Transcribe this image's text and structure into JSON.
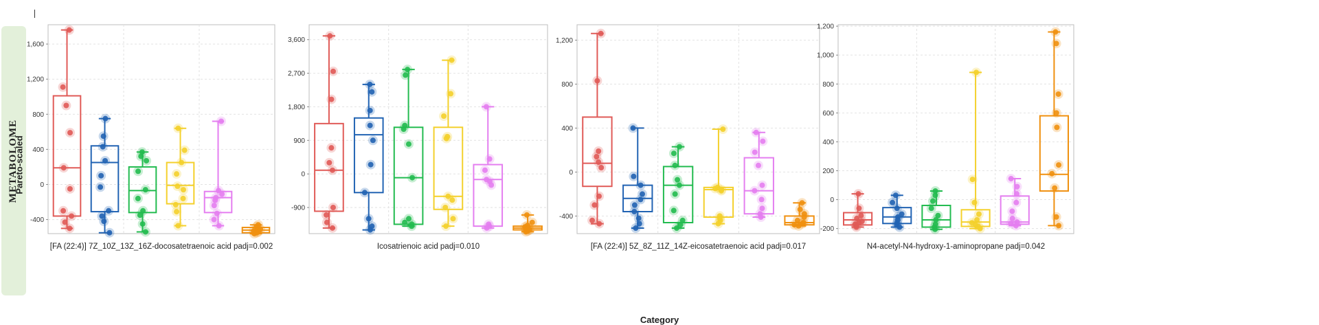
{
  "sidebar": {
    "label": "METABOLOME"
  },
  "axes": {
    "ylabel": "Pareto-scaled",
    "xlabel": "Category"
  },
  "colors": [
    "#e05a57",
    "#2163b3",
    "#22bb4f",
    "#f4d02b",
    "#e47ef0",
    "#f0900f"
  ],
  "chart_data": [
    {
      "type": "box",
      "title": "[FA (22:4)] 7Z_10Z_13Z_16Z-docosatetraenoic acid padj=0.002",
      "yticks": [
        -400,
        0,
        400,
        800,
        1200,
        1600
      ],
      "ytick_labels": [
        "-400",
        "0",
        "400",
        "800",
        "1,200",
        "1,600"
      ],
      "ylim": [
        -560,
        1820
      ],
      "grid": true,
      "boxes": [
        {
          "q1": -360,
          "median": 190,
          "q3": 1010,
          "min": -500,
          "max": 1760,
          "points": [
            1760,
            1110,
            900,
            590,
            190,
            -50,
            -300,
            -360,
            -430,
            -500
          ]
        },
        {
          "q1": -310,
          "median": 250,
          "q3": 440,
          "min": -550,
          "max": 750,
          "points": [
            750,
            550,
            430,
            270,
            100,
            -30,
            -300,
            -360,
            -420,
            -550
          ]
        },
        {
          "q1": -320,
          "median": -70,
          "q3": 200,
          "min": -540,
          "max": 370,
          "points": [
            370,
            320,
            270,
            150,
            -60,
            -160,
            -300,
            -350,
            -450,
            -540
          ]
        },
        {
          "q1": -220,
          "median": -10,
          "q3": 250,
          "min": -470,
          "max": 640,
          "points": [
            640,
            390,
            250,
            120,
            -20,
            -60,
            -160,
            -230,
            -310,
            -470
          ]
        },
        {
          "q1": -320,
          "median": -150,
          "q3": -80,
          "min": -470,
          "max": 720,
          "points": [
            720,
            -70,
            -110,
            -150,
            -180,
            -240,
            -330,
            -400,
            -470
          ]
        },
        {
          "q1": -550,
          "median": -520,
          "q3": -490,
          "min": -560,
          "max": -460,
          "points": [
            -460,
            -480,
            -500,
            -510,
            -520,
            -530,
            -540,
            -550,
            -560
          ]
        }
      ]
    },
    {
      "type": "box",
      "title": "Icosatrienoic acid padj=0.010",
      "yticks": [
        -900,
        0,
        900,
        1800,
        2700,
        3600
      ],
      "ytick_labels": [
        "-900",
        "0",
        "900",
        "1,800",
        "2,700",
        "3,600"
      ],
      "ylim": [
        -1600,
        4000
      ],
      "grid": true,
      "boxes": [
        {
          "q1": -1000,
          "median": 100,
          "q3": 1350,
          "min": -1450,
          "max": 3700,
          "points": [
            3700,
            2750,
            2000,
            700,
            300,
            100,
            -900,
            -1100,
            -1300,
            -1450
          ]
        },
        {
          "q1": -500,
          "median": 1050,
          "q3": 1500,
          "min": -1500,
          "max": 2400,
          "points": [
            2400,
            2200,
            1700,
            1300,
            900,
            250,
            -500,
            -1200,
            -1400,
            -1500
          ]
        },
        {
          "q1": -1350,
          "median": -100,
          "q3": 1250,
          "min": -1400,
          "max": 2800,
          "points": [
            2800,
            2650,
            1300,
            1200,
            800,
            -100,
            -1200,
            -1300,
            -1350,
            -1400
          ]
        },
        {
          "q1": -950,
          "median": -600,
          "q3": 1250,
          "min": -1400,
          "max": 3050,
          "points": [
            3050,
            2150,
            1550,
            1000,
            950,
            -600,
            -700,
            -900,
            -1200,
            -1400
          ]
        },
        {
          "q1": -1400,
          "median": -150,
          "q3": 250,
          "min": -1450,
          "max": 1800,
          "points": [
            1800,
            400,
            100,
            -150,
            -200,
            -300,
            -1350,
            -1400,
            -1450
          ]
        },
        {
          "q1": -1500,
          "median": -1450,
          "q3": -1400,
          "min": -1550,
          "max": -1100,
          "points": [
            -1100,
            -1300,
            -1380,
            -1420,
            -1450,
            -1480,
            -1500,
            -1530,
            -1550
          ]
        }
      ]
    },
    {
      "type": "box",
      "title": "[FA (22:4)] 5Z_8Z_11Z_14Z-eicosatetraenoic acid padj=0.017",
      "yticks": [
        -400,
        0,
        400,
        800,
        1200
      ],
      "ytick_labels": [
        "-400",
        "0",
        "400",
        "800",
        "1,200"
      ],
      "ylim": [
        -560,
        1340
      ],
      "grid": true,
      "boxes": [
        {
          "q1": -130,
          "median": 80,
          "q3": 500,
          "min": -470,
          "max": 1260,
          "points": [
            1260,
            830,
            190,
            140,
            90,
            40,
            -220,
            -300,
            -440,
            -470
          ]
        },
        {
          "q1": -360,
          "median": -240,
          "q3": -120,
          "min": -510,
          "max": 400,
          "points": [
            400,
            -40,
            -120,
            -200,
            -250,
            -300,
            -360,
            -420,
            -470,
            -510
          ]
        },
        {
          "q1": -460,
          "median": -120,
          "q3": 50,
          "min": -510,
          "max": 230,
          "points": [
            230,
            170,
            60,
            -70,
            -120,
            -200,
            -350,
            -440,
            -480,
            -510
          ]
        },
        {
          "q1": -410,
          "median": -160,
          "q3": -140,
          "min": -470,
          "max": 390,
          "points": [
            390,
            -140,
            -150,
            -160,
            -170,
            -400,
            -420,
            -440,
            -470
          ]
        },
        {
          "q1": -380,
          "median": -170,
          "q3": 130,
          "min": -410,
          "max": 360,
          "points": [
            360,
            280,
            180,
            60,
            -120,
            -170,
            -250,
            -330,
            -380,
            -410
          ]
        },
        {
          "q1": -480,
          "median": -460,
          "q3": -400,
          "min": -490,
          "max": -280,
          "points": [
            -280,
            -340,
            -380,
            -410,
            -440,
            -460,
            -470,
            -480,
            -490
          ]
        }
      ]
    },
    {
      "type": "box",
      "title": "N4-acetyl-N4-hydroxy-1-aminopropane padj=0.042",
      "yticks": [
        -200,
        0,
        200,
        400,
        600,
        800,
        1000,
        1200
      ],
      "ytick_labels": [
        "-200",
        "0",
        "200",
        "400",
        "600",
        "800",
        "1,000",
        "1,200"
      ],
      "ylim": [
        -235,
        1210
      ],
      "grid": true,
      "boxes": [
        {
          "q1": -175,
          "median": -140,
          "q3": -90,
          "min": -190,
          "max": 40,
          "points": [
            40,
            -60,
            -110,
            -130,
            -150,
            -160,
            -170,
            -180,
            -190
          ]
        },
        {
          "q1": -165,
          "median": -120,
          "q3": -55,
          "min": -190,
          "max": 30,
          "points": [
            30,
            -20,
            -60,
            -100,
            -120,
            -140,
            -160,
            -175,
            -190
          ]
        },
        {
          "q1": -190,
          "median": -140,
          "q3": -40,
          "min": -205,
          "max": 60,
          "points": [
            60,
            30,
            -10,
            -60,
            -110,
            -140,
            -170,
            -190,
            -205
          ]
        },
        {
          "q1": -185,
          "median": -155,
          "q3": -70,
          "min": -200,
          "max": 880,
          "points": [
            880,
            140,
            -20,
            -100,
            -140,
            -160,
            -175,
            -185,
            -200
          ]
        },
        {
          "q1": -170,
          "median": -155,
          "q3": 25,
          "min": -180,
          "max": 145,
          "points": [
            145,
            90,
            40,
            -20,
            -80,
            -130,
            -155,
            -165,
            -180
          ]
        },
        {
          "q1": 60,
          "median": 175,
          "q3": 580,
          "min": -180,
          "max": 1160,
          "points": [
            1160,
            1080,
            730,
            600,
            500,
            240,
            180,
            80,
            -120,
            -180
          ]
        }
      ]
    }
  ]
}
